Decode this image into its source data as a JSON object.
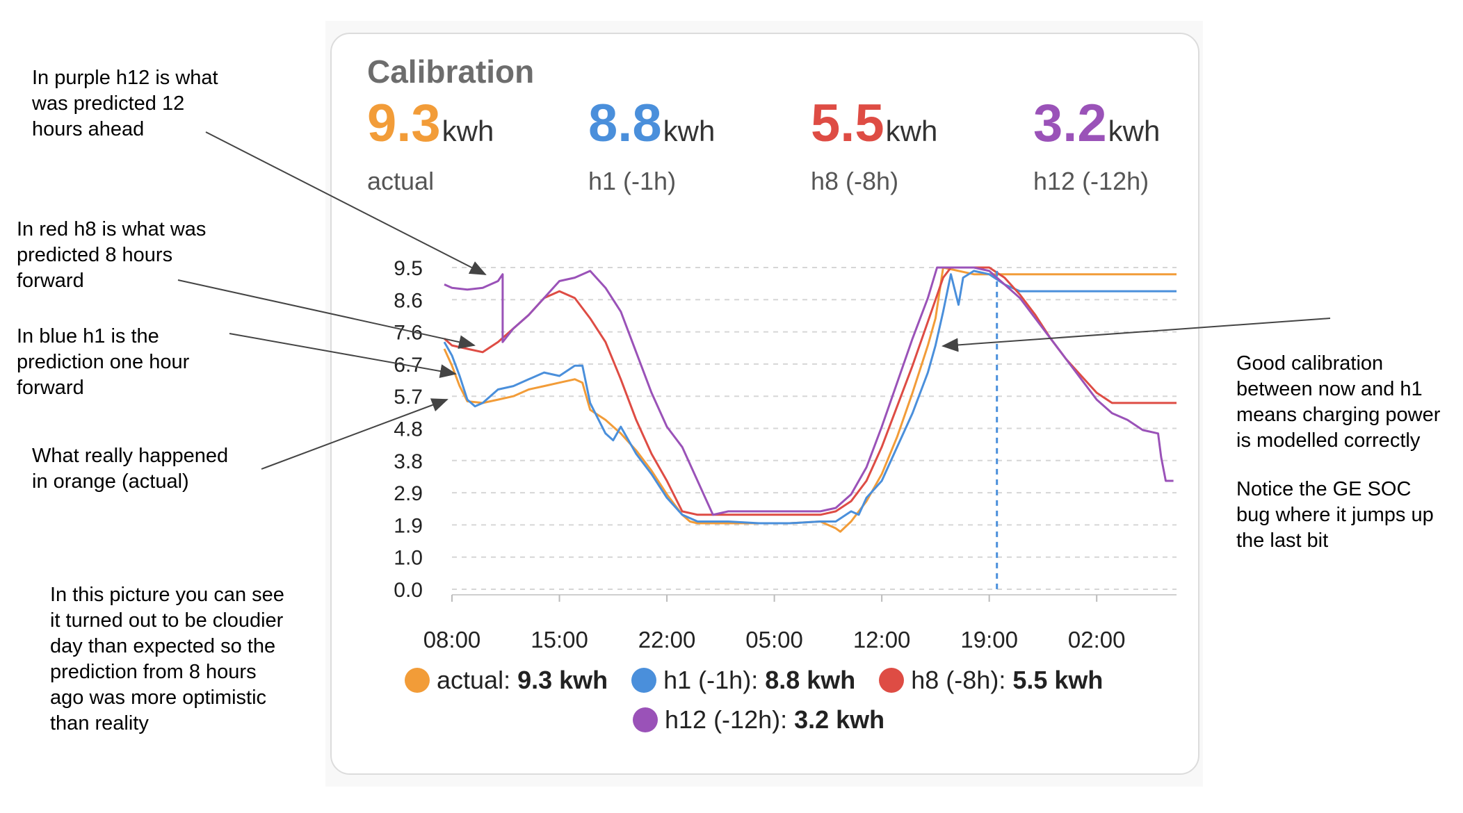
{
  "card": {
    "title": "Calibration"
  },
  "stats": [
    {
      "value": "9.3",
      "unit": "kwh",
      "label": "actual",
      "color": "#f29c38"
    },
    {
      "value": "8.8",
      "unit": "kwh",
      "label": "h1 (-1h)",
      "color": "#4a8fdb"
    },
    {
      "value": "5.5",
      "unit": "kwh",
      "label": "h8 (-8h)",
      "color": "#de4c44"
    },
    {
      "value": "3.2",
      "unit": "kwh",
      "label": "h12 (-12h)",
      "color": "#9a52b8"
    }
  ],
  "legend": [
    {
      "name": "actual:",
      "value": "9.3 kwh",
      "color": "#f29c38"
    },
    {
      "name": "h1 (-1h):",
      "value": "8.8 kwh",
      "color": "#4a8fdb"
    },
    {
      "name": "h8 (-8h):",
      "value": "5.5 kwh",
      "color": "#de4c44"
    },
    {
      "name": "h12 (-12h):",
      "value": "3.2 kwh",
      "color": "#9a52b8"
    }
  ],
  "notes": {
    "h12": "In purple h12 is what\nwas predicted 12\nhours ahead",
    "h8": "In red h8 is what was\npredicted 8 hours\nforward",
    "h1": "In blue h1 is the\nprediction one hour\nforward",
    "actual": "What really happened\nin orange (actual)",
    "cloudy": "In this picture you can see\nit turned out to be cloudier\nday than expected so the\nprediction from 8 hours\nago was more optimistic\nthan reality",
    "good": "Good calibration\nbetween now and h1\nmeans charging power\nis modelled correctly",
    "bug": "Notice the GE SOC\nbug where it jumps up\nthe last bit"
  },
  "chart_data": {
    "type": "line",
    "y_ticks": [
      "0.0",
      "1.0",
      "1.9",
      "2.9",
      "3.8",
      "4.8",
      "5.7",
      "6.7",
      "7.6",
      "8.6",
      "9.5"
    ],
    "x_ticks": [
      "08:00",
      "15:00",
      "22:00",
      "05:00",
      "12:00",
      "19:00",
      "02:00"
    ],
    "x_unit": "hours since 08:00 day 1",
    "xlim": [
      0,
      47.2
    ],
    "ylim": [
      0,
      9.5
    ],
    "now_marker_x": 35.5,
    "series": [
      {
        "name": "actual",
        "color": "#f29c38",
        "points": [
          [
            -0.5,
            7.1
          ],
          [
            0,
            6.6
          ],
          [
            0.5,
            6.0
          ],
          [
            1,
            5.55
          ],
          [
            2,
            5.5
          ],
          [
            3,
            5.6
          ],
          [
            4,
            5.7
          ],
          [
            5,
            5.9
          ],
          [
            6,
            6.0
          ],
          [
            7,
            6.1
          ],
          [
            8,
            6.2
          ],
          [
            8.5,
            6.1
          ],
          [
            9,
            5.3
          ],
          [
            10,
            5.0
          ],
          [
            11,
            4.6
          ],
          [
            12,
            4.1
          ],
          [
            13,
            3.5
          ],
          [
            14,
            2.8
          ],
          [
            15,
            2.2
          ],
          [
            15.5,
            2.0
          ],
          [
            16,
            1.95
          ],
          [
            18,
            1.95
          ],
          [
            20,
            1.95
          ],
          [
            22,
            1.95
          ],
          [
            24,
            2.0
          ],
          [
            25,
            1.8
          ],
          [
            25.3,
            1.7
          ],
          [
            26,
            2.0
          ],
          [
            27,
            2.6
          ],
          [
            28,
            3.4
          ],
          [
            29,
            4.5
          ],
          [
            30,
            5.8
          ],
          [
            31,
            7.2
          ],
          [
            31.5,
            8.0
          ],
          [
            32,
            9.5
          ],
          [
            34,
            9.3
          ],
          [
            35,
            9.3
          ],
          [
            36,
            9.3
          ],
          [
            47.2,
            9.3
          ]
        ]
      },
      {
        "name": "h1",
        "color": "#4a8fdb",
        "points": [
          [
            -0.5,
            7.3
          ],
          [
            0,
            6.9
          ],
          [
            0.5,
            6.3
          ],
          [
            1,
            5.6
          ],
          [
            1.5,
            5.4
          ],
          [
            2,
            5.5
          ],
          [
            3,
            5.9
          ],
          [
            4,
            6.0
          ],
          [
            5,
            6.2
          ],
          [
            6,
            6.4
          ],
          [
            7,
            6.3
          ],
          [
            8,
            6.6
          ],
          [
            8.5,
            6.6
          ],
          [
            9,
            5.5
          ],
          [
            10,
            4.6
          ],
          [
            10.5,
            4.4
          ],
          [
            11,
            4.8
          ],
          [
            12,
            4.0
          ],
          [
            13,
            3.4
          ],
          [
            14,
            2.7
          ],
          [
            15,
            2.2
          ],
          [
            16,
            2.0
          ],
          [
            18,
            2.0
          ],
          [
            20,
            1.95
          ],
          [
            22,
            1.95
          ],
          [
            24,
            2.0
          ],
          [
            25,
            2.0
          ],
          [
            26,
            2.3
          ],
          [
            26.5,
            2.2
          ],
          [
            27,
            2.7
          ],
          [
            28,
            3.2
          ],
          [
            29,
            4.2
          ],
          [
            30,
            5.2
          ],
          [
            31,
            6.4
          ],
          [
            31.5,
            7.2
          ],
          [
            32,
            8.2
          ],
          [
            32.5,
            9.3
          ],
          [
            33,
            8.4
          ],
          [
            33.3,
            9.2
          ],
          [
            34,
            9.4
          ],
          [
            35,
            9.3
          ],
          [
            36,
            9.0
          ],
          [
            37,
            8.8
          ],
          [
            47.2,
            8.8
          ]
        ]
      },
      {
        "name": "h8",
        "color": "#de4c44",
        "points": [
          [
            -0.5,
            7.4
          ],
          [
            0,
            7.2
          ],
          [
            1,
            7.1
          ],
          [
            2,
            7.0
          ],
          [
            3,
            7.3
          ],
          [
            4,
            7.7
          ],
          [
            5,
            8.1
          ],
          [
            6,
            8.6
          ],
          [
            7,
            8.8
          ],
          [
            8,
            8.6
          ],
          [
            9,
            8.0
          ],
          [
            10,
            7.3
          ],
          [
            11,
            6.2
          ],
          [
            12,
            5.0
          ],
          [
            13,
            4.0
          ],
          [
            14,
            3.2
          ],
          [
            15,
            2.3
          ],
          [
            16,
            2.2
          ],
          [
            18,
            2.2
          ],
          [
            20,
            2.2
          ],
          [
            22,
            2.2
          ],
          [
            24,
            2.2
          ],
          [
            25,
            2.3
          ],
          [
            26,
            2.6
          ],
          [
            27,
            3.2
          ],
          [
            28,
            4.2
          ],
          [
            29,
            5.4
          ],
          [
            30,
            6.6
          ],
          [
            31,
            7.9
          ],
          [
            32,
            9.2
          ],
          [
            32.5,
            9.5
          ],
          [
            34,
            9.5
          ],
          [
            35,
            9.5
          ],
          [
            36,
            9.2
          ],
          [
            37,
            8.7
          ],
          [
            38,
            8.1
          ],
          [
            39,
            7.4
          ],
          [
            40,
            6.8
          ],
          [
            41,
            6.3
          ],
          [
            42,
            5.8
          ],
          [
            43,
            5.5
          ],
          [
            47.2,
            5.5
          ]
        ]
      },
      {
        "name": "h12",
        "color": "#9a52b8",
        "points": [
          [
            -0.5,
            9.0
          ],
          [
            0,
            8.9
          ],
          [
            1,
            8.85
          ],
          [
            2,
            8.9
          ],
          [
            3,
            9.1
          ],
          [
            3.3,
            9.3
          ],
          [
            3.3,
            7.3
          ],
          [
            4,
            7.7
          ],
          [
            5,
            8.1
          ],
          [
            6,
            8.6
          ],
          [
            7,
            9.1
          ],
          [
            8,
            9.2
          ],
          [
            9,
            9.4
          ],
          [
            10,
            8.9
          ],
          [
            11,
            8.2
          ],
          [
            12,
            7.0
          ],
          [
            13,
            5.8
          ],
          [
            14,
            4.8
          ],
          [
            15,
            4.2
          ],
          [
            16,
            3.2
          ],
          [
            17,
            2.2
          ],
          [
            18,
            2.3
          ],
          [
            20,
            2.3
          ],
          [
            22,
            2.3
          ],
          [
            24,
            2.3
          ],
          [
            25,
            2.4
          ],
          [
            26,
            2.8
          ],
          [
            27,
            3.6
          ],
          [
            28,
            4.8
          ],
          [
            29,
            6.1
          ],
          [
            30,
            7.4
          ],
          [
            31,
            8.6
          ],
          [
            31.6,
            9.5
          ],
          [
            34,
            9.5
          ],
          [
            35,
            9.4
          ],
          [
            36,
            9.0
          ],
          [
            37,
            8.6
          ],
          [
            38,
            8.0
          ],
          [
            39,
            7.4
          ],
          [
            40,
            6.8
          ],
          [
            41,
            6.2
          ],
          [
            42,
            5.6
          ],
          [
            43,
            5.2
          ],
          [
            44,
            5.0
          ],
          [
            45,
            4.7
          ],
          [
            46,
            4.6
          ],
          [
            46.2,
            3.9
          ],
          [
            46.5,
            3.2
          ],
          [
            47,
            3.2
          ]
        ]
      }
    ]
  }
}
